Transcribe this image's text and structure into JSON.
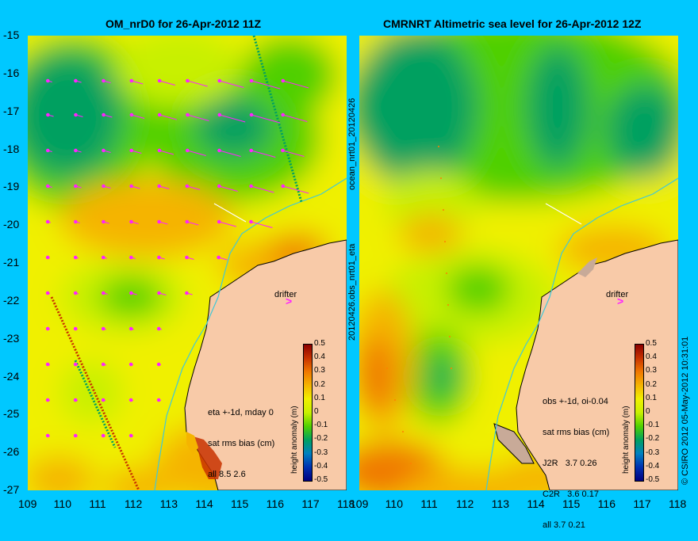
{
  "left_panel": {
    "title": "OM_nrD0 for 26-Apr-2012 11Z",
    "annotation_lines": [
      "eta +-1d, mday 0",
      "sat rms bias (cm)",
      "all 8.5 2.6"
    ],
    "drifter_label": "drifter"
  },
  "right_panel": {
    "title": "CMRNRT Altimetric sea level  for 26-Apr-2012 12Z",
    "annotation_lines": [
      "obs +-1d, oi-0.04",
      "sat rms bias (cm)",
      "J2R   3.7 0.26",
      "C2R   3.6 0.17",
      "all 3.7 0.21"
    ],
    "drifter_label": "drifter"
  },
  "side_labels": {
    "top": "ocean_nrt01_20120426",
    "bottom": "20120426.obs_nrt01_eta",
    "credit": "© CSIRO 2012   05-May-2012 10:31:01"
  },
  "map": {
    "lon_ticks": [
      "109",
      "110",
      "111",
      "112",
      "113",
      "114",
      "115",
      "116",
      "117",
      "118"
    ],
    "lat_ticks": [
      "-15",
      "-16",
      "-17",
      "-18",
      "-19",
      "-20",
      "-21",
      "-22",
      "-23",
      "-24",
      "-25",
      "-26",
      "-27"
    ],
    "lon_range": [
      109,
      118
    ],
    "lat_range": [
      -27,
      -15
    ]
  },
  "colorbar": {
    "label": "height anomaly (m)",
    "ticks": [
      "0.5",
      "0.4",
      "0.3",
      "0.2",
      "0.1",
      "0",
      "-0.1",
      "-0.2",
      "-0.3",
      "-0.4",
      "-0.5"
    ],
    "colors": [
      "#8b0000",
      "#c83200",
      "#f07800",
      "#f5b400",
      "#f0f000",
      "#c8f000",
      "#50d000",
      "#00a060",
      "#0080c0",
      "#0030b0",
      "#000080"
    ]
  },
  "colors": {
    "background": "#00c8ff",
    "land": "#f8caa8",
    "vector": "#ff22ff",
    "coastline": "#000000",
    "isobath": "#40c8d8"
  }
}
